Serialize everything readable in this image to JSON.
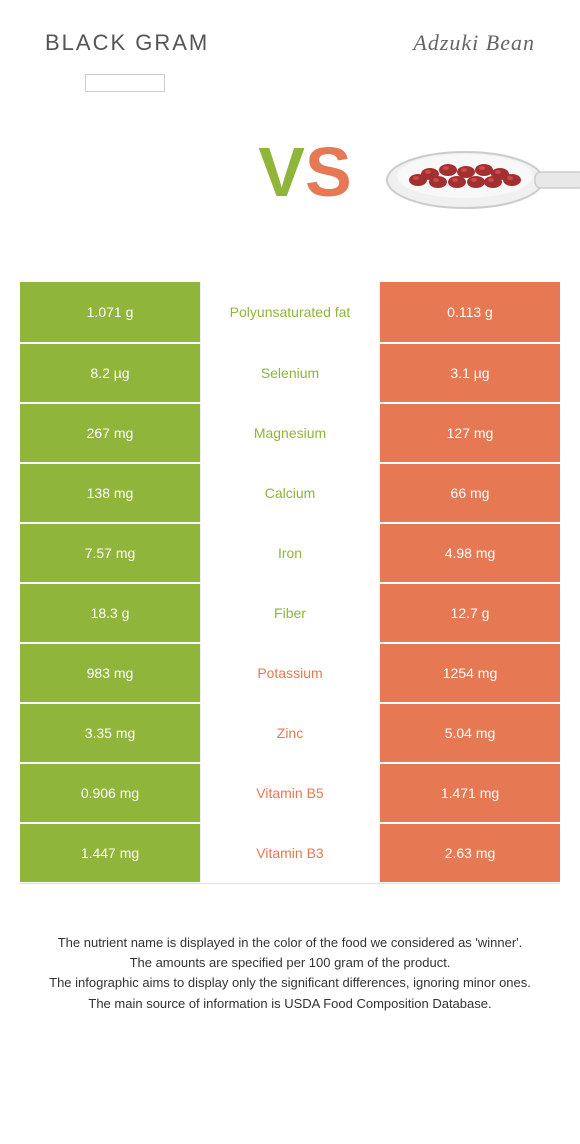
{
  "header": {
    "left_title": "BLACK GRAM",
    "right_title": "Adzuki Bean"
  },
  "vs": {
    "v": "V",
    "s": "S"
  },
  "colors": {
    "green": "#8fb53a",
    "orange": "#e67853",
    "bean": "#a33030",
    "bean_highlight": "#d04848",
    "spoon_body": "#f0f0f0",
    "spoon_edge": "#cccccc"
  },
  "rows": [
    {
      "nutrient": "Polyunsaturated fat",
      "left": "1.071 g",
      "right": "0.113 g",
      "winner": "left"
    },
    {
      "nutrient": "Selenium",
      "left": "8.2 µg",
      "right": "3.1 µg",
      "winner": "left"
    },
    {
      "nutrient": "Magnesium",
      "left": "267 mg",
      "right": "127 mg",
      "winner": "left"
    },
    {
      "nutrient": "Calcium",
      "left": "138 mg",
      "right": "66 mg",
      "winner": "left"
    },
    {
      "nutrient": "Iron",
      "left": "7.57 mg",
      "right": "4.98 mg",
      "winner": "left"
    },
    {
      "nutrient": "Fiber",
      "left": "18.3 g",
      "right": "12.7 g",
      "winner": "left"
    },
    {
      "nutrient": "Potassium",
      "left": "983 mg",
      "right": "1254 mg",
      "winner": "right"
    },
    {
      "nutrient": "Zinc",
      "left": "3.35 mg",
      "right": "5.04 mg",
      "winner": "right"
    },
    {
      "nutrient": "Vitamin B5",
      "left": "0.906 mg",
      "right": "1.471 mg",
      "winner": "right"
    },
    {
      "nutrient": "Vitamin B3",
      "left": "1.447 mg",
      "right": "2.63 mg",
      "winner": "right"
    }
  ],
  "footer": {
    "l1": "The nutrient name is displayed in the color of the food we considered as 'winner'.",
    "l2": "The amounts are specified per 100 gram of the product.",
    "l3": "The infographic aims to display only the significant differences, ignoring minor ones.",
    "l4": "The main source of information is USDA Food Composition Database."
  }
}
